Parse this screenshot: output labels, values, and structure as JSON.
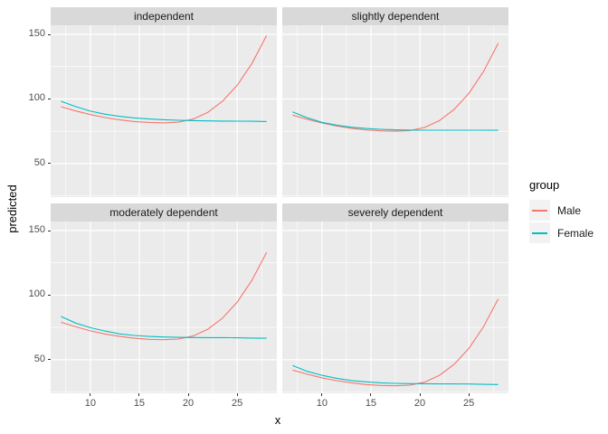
{
  "chart_data": {
    "type": "line",
    "title": "",
    "xlabel": "x",
    "ylabel": "predicted",
    "x_ticks": [
      10,
      15,
      20,
      25
    ],
    "y_ticks": [
      50,
      100,
      150
    ],
    "x_minor": [
      7.5,
      12.5,
      17.5,
      22.5,
      27.5
    ],
    "y_minor": [
      25,
      75,
      125
    ],
    "xlim": [
      5.95,
      29.05
    ],
    "ylim": [
      24,
      157
    ],
    "grid": "on",
    "legend": {
      "title": "group",
      "entries": [
        "Male",
        "Female"
      ],
      "position": "right"
    },
    "palette": {
      "Male": "#F8766D",
      "Female": "#00BFC4",
      "panel_bg": "#EBEBEB",
      "strip_bg": "#D9D9D9",
      "grid_line": "#FFFFFF",
      "legend_key_bg": "#F2F2F2",
      "axis_text": "#4D4D4D",
      "tick_mark": "#333333"
    },
    "x": [
      7,
      8.5,
      10,
      11.5,
      13,
      14.5,
      16,
      17.5,
      19,
      20.5,
      22,
      23.5,
      25,
      26.5,
      28
    ],
    "facets": [
      {
        "title": "independent",
        "series": [
          {
            "name": "Male",
            "values": [
              94,
              90.7,
              87.9,
              85.6,
              83.8,
              82.5,
              81.8,
              81.5,
              82,
              84.4,
              89.6,
              98.2,
              110.6,
              127.4,
              149
            ]
          },
          {
            "name": "Female",
            "values": [
              98.2,
              94.1,
              90.6,
              88.2,
              86.5,
              85.3,
              84.5,
              83.9,
              83.5,
              83.2,
              83,
              82.9,
              82.8,
              82.7,
              82.5
            ]
          }
        ]
      },
      {
        "title": "slightly dependent",
        "series": [
          {
            "name": "Male",
            "values": [
              87.5,
              84.2,
              81.4,
              79.1,
              77.3,
              76,
              75.3,
              75,
              75.5,
              78,
              83.2,
              91.8,
              104.3,
              121.2,
              143
            ]
          },
          {
            "name": "Female",
            "values": [
              90,
              85.4,
              81.9,
              79.7,
              78.1,
              77.1,
              76.5,
              76.1,
              75.9,
              75.8,
              75.8,
              75.8,
              75.8,
              75.8,
              75.7
            ]
          }
        ]
      },
      {
        "title": "moderately dependent",
        "series": [
          {
            "name": "Male",
            "values": [
              79,
              75.5,
              72.4,
              69.9,
              68,
              66.6,
              65.8,
              65.5,
              66,
              68.4,
              73.6,
              82.2,
              94.6,
              111.4,
              133
            ]
          },
          {
            "name": "Female",
            "values": [
              83.5,
              78.4,
              74.8,
              72.2,
              70,
              68.8,
              68,
              67.6,
              67.3,
              67.2,
              67.1,
              67.1,
              67,
              66.8,
              66.6
            ]
          }
        ]
      },
      {
        "title": "severely dependent",
        "series": [
          {
            "name": "Male",
            "values": [
              42,
              38.8,
              36,
              33.8,
              32.1,
              30.8,
              30.1,
              29.8,
              30.3,
              32.7,
              37.9,
              46.4,
              58.7,
              75.5,
              97
            ]
          },
          {
            "name": "Female",
            "values": [
              45.5,
              41,
              37.9,
              35.6,
              33.9,
              32.9,
              32.1,
              31.7,
              31.5,
              31.4,
              31.3,
              31.3,
              31.2,
              30.9,
              30.8
            ]
          }
        ]
      }
    ]
  }
}
